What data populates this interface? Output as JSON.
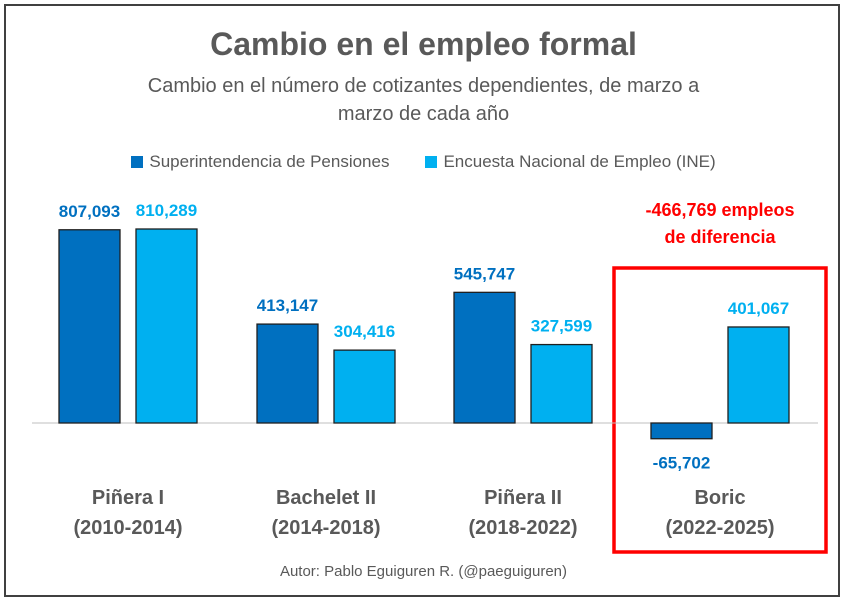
{
  "chart_data": {
    "type": "bar",
    "title": "Cambio en el empleo formal",
    "subtitle_line1": "Cambio en el número de cotizantes dependientes, de marzo a",
    "subtitle_line2": "marzo de cada año",
    "categories": [
      [
        "Piñera I",
        "(2010-2014)"
      ],
      [
        "Bachelet II",
        "(2014-2018)"
      ],
      [
        "Piñera II",
        "(2018-2022)"
      ],
      [
        "Boric",
        "(2022-2025)"
      ]
    ],
    "series": [
      {
        "name": "Superintendencia de Pensiones",
        "color": "#0070C0",
        "values": [
          807093,
          413147,
          545747,
          -65702
        ],
        "labels": [
          "807,093",
          "413,147",
          "545,747",
          "-65,702"
        ]
      },
      {
        "name": "Encuesta Nacional de Empleo (INE)",
        "color": "#00B0F0",
        "values": [
          810289,
          304416,
          327599,
          401067
        ],
        "labels": [
          "810,289",
          "304,416",
          "327,599",
          "401,067"
        ]
      }
    ],
    "annotation": {
      "line1": "-466,769 empleos",
      "line2": "de diferencia",
      "color": "#FF0000"
    },
    "highlight_category_index": 3,
    "ylim": [
      -100000,
      900000
    ],
    "grid": false,
    "legend_position": "top"
  },
  "footer": "Autor: Pablo Eguiguren R. (@paeguiguren)"
}
